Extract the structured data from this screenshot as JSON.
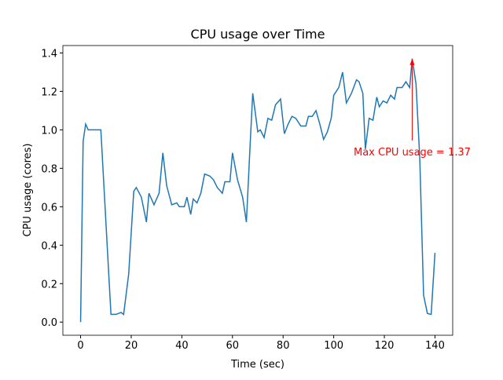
{
  "chart_data": {
    "type": "line",
    "title": "CPU usage over Time",
    "x_label": "Time (sec)",
    "y_label": "CPU usage (cores)",
    "x": [
      0,
      1,
      2,
      3,
      8,
      12,
      14,
      16,
      17,
      19,
      21,
      22,
      24,
      26,
      27,
      29,
      31,
      32.5,
      34,
      36,
      38,
      39,
      41,
      42,
      43.5,
      44.5,
      46,
      47.5,
      49,
      51,
      52.5,
      54,
      56,
      57,
      59,
      60,
      62,
      64,
      65.5,
      67,
      68,
      70,
      71,
      72.5,
      74,
      75.5,
      77,
      79,
      80.5,
      82,
      83.5,
      85,
      87,
      89,
      90,
      91.5,
      93,
      94.5,
      96,
      97.5,
      99,
      100,
      102,
      103.5,
      105,
      107,
      109,
      110,
      111.5,
      112.5,
      114,
      115.5,
      117,
      118,
      119.5,
      121,
      122.5,
      124,
      125,
      127,
      128.5,
      130,
      131,
      132.5,
      134,
      135.5,
      137,
      138.5,
      140
    ],
    "values": [
      0,
      0.94,
      1.03,
      1.0,
      1.0,
      0.04,
      0.04,
      0.05,
      0.04,
      0.25,
      0.68,
      0.7,
      0.65,
      0.52,
      0.67,
      0.61,
      0.67,
      0.88,
      0.71,
      0.61,
      0.62,
      0.6,
      0.6,
      0.65,
      0.56,
      0.64,
      0.62,
      0.67,
      0.77,
      0.76,
      0.74,
      0.7,
      0.67,
      0.73,
      0.73,
      0.88,
      0.74,
      0.65,
      0.52,
      0.93,
      1.19,
      0.99,
      1.0,
      0.96,
      1.06,
      1.05,
      1.13,
      1.16,
      0.98,
      1.03,
      1.07,
      1.06,
      1.02,
      1.02,
      1.07,
      1.07,
      1.1,
      1.03,
      0.95,
      0.99,
      1.06,
      1.18,
      1.22,
      1.3,
      1.14,
      1.19,
      1.26,
      1.25,
      1.19,
      0.9,
      1.06,
      1.05,
      1.17,
      1.12,
      1.15,
      1.14,
      1.18,
      1.16,
      1.22,
      1.22,
      1.25,
      1.22,
      1.37,
      1.24,
      0.85,
      0.14,
      0.045,
      0.04,
      0.36
    ],
    "color": "#1f77b4",
    "xlim": [
      -7,
      147
    ],
    "xticks": [
      0,
      20,
      40,
      60,
      80,
      100,
      120,
      140
    ],
    "ylim": [
      -0.0685,
      1.4385
    ],
    "yticks": [
      {
        "value": 0,
        "label": "0.0"
      },
      {
        "value": 0.2,
        "label": "0.2"
      },
      {
        "value": 0.4,
        "label": "0.4"
      },
      {
        "value": 0.6,
        "label": "0.6"
      },
      {
        "value": 0.8,
        "label": "0.8"
      },
      {
        "value": 1.0,
        "label": "1.0"
      },
      {
        "value": 1.2,
        "label": "1.2"
      },
      {
        "value": 1.4,
        "label": "1.4"
      }
    ],
    "annotation": {
      "text": "Max CPU usage = 1.37",
      "x": 131,
      "y": 1.37,
      "color": "red"
    }
  }
}
